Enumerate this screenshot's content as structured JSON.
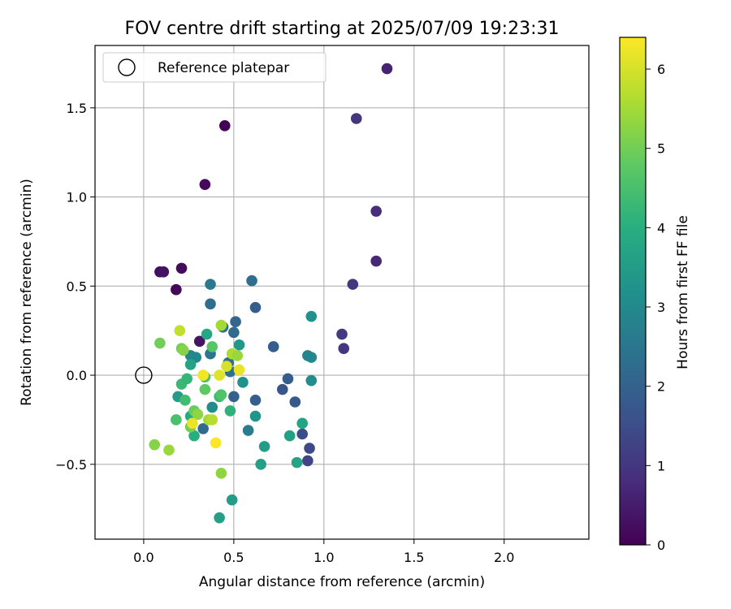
{
  "chart_data": {
    "type": "scatter",
    "title": "FOV centre drift starting at 2025/07/09 19:23:31",
    "xlabel": "Angular distance from reference (arcmin)",
    "ylabel": "Rotation from reference (arcmin)",
    "xlim": [
      -0.27,
      2.47
    ],
    "ylim": [
      -0.92,
      1.85
    ],
    "xticks": [
      0.0,
      0.5,
      1.0,
      1.5,
      2.0
    ],
    "xtick_labels": [
      "0.0",
      "0.5",
      "1.0",
      "1.5",
      "2.0"
    ],
    "yticks": [
      -0.5,
      0.0,
      0.5,
      1.0,
      1.5
    ],
    "ytick_labels": [
      "−0.5",
      "0.0",
      "0.5",
      "1.0",
      "1.5"
    ],
    "grid": true,
    "legend": {
      "position": "upper-left",
      "entries": [
        {
          "label": "Reference platepar",
          "marker": "open-circle",
          "color": "#000000"
        }
      ]
    },
    "reference_point": {
      "x": 0.0,
      "y": 0.0,
      "label": "Reference platepar"
    },
    "colorbar": {
      "label": "Hours from first FF file",
      "colormap": "viridis",
      "range": [
        0,
        6.4
      ],
      "ticks": [
        0,
        1,
        2,
        3,
        4,
        5,
        6
      ],
      "tick_labels": [
        "0",
        "1",
        "2",
        "3",
        "4",
        "5",
        "6"
      ]
    },
    "points": [
      {
        "x": 0.45,
        "y": 1.4,
        "hours": 0.05
      },
      {
        "x": 0.34,
        "y": 1.07,
        "hours": 0.15
      },
      {
        "x": 0.09,
        "y": 0.58,
        "hours": 0.25
      },
      {
        "x": 0.11,
        "y": 0.58,
        "hours": 0.3
      },
      {
        "x": 0.21,
        "y": 0.6,
        "hours": 0.2
      },
      {
        "x": 0.18,
        "y": 0.48,
        "hours": 0.1
      },
      {
        "x": 0.31,
        "y": 0.19,
        "hours": 0.35
      },
      {
        "x": 1.35,
        "y": 1.72,
        "hours": 0.6
      },
      {
        "x": 1.18,
        "y": 1.44,
        "hours": 1.0
      },
      {
        "x": 1.29,
        "y": 0.92,
        "hours": 0.8
      },
      {
        "x": 1.29,
        "y": 0.64,
        "hours": 0.7
      },
      {
        "x": 1.16,
        "y": 0.51,
        "hours": 1.0
      },
      {
        "x": 1.1,
        "y": 0.23,
        "hours": 1.05
      },
      {
        "x": 1.11,
        "y": 0.15,
        "hours": 1.0
      },
      {
        "x": 0.91,
        "y": -0.48,
        "hours": 1.3
      },
      {
        "x": 0.92,
        "y": -0.41,
        "hours": 1.4
      },
      {
        "x": 0.88,
        "y": -0.33,
        "hours": 1.5
      },
      {
        "x": 0.84,
        "y": -0.15,
        "hours": 1.8
      },
      {
        "x": 0.8,
        "y": -0.02,
        "hours": 1.9
      },
      {
        "x": 0.77,
        "y": -0.08,
        "hours": 1.7
      },
      {
        "x": 0.72,
        "y": 0.16,
        "hours": 1.9
      },
      {
        "x": 0.62,
        "y": 0.38,
        "hours": 1.9
      },
      {
        "x": 0.62,
        "y": -0.14,
        "hours": 1.9
      },
      {
        "x": 0.6,
        "y": 0.53,
        "hours": 2.3
      },
      {
        "x": 0.5,
        "y": -0.12,
        "hours": 2.0
      },
      {
        "x": 0.51,
        "y": 0.3,
        "hours": 2.1
      },
      {
        "x": 0.5,
        "y": 0.24,
        "hours": 2.2
      },
      {
        "x": 0.44,
        "y": 0.27,
        "hours": 2.4
      },
      {
        "x": 0.37,
        "y": 0.51,
        "hours": 2.6
      },
      {
        "x": 0.37,
        "y": 0.4,
        "hours": 2.3
      },
      {
        "x": 0.37,
        "y": 0.12,
        "hours": 2.5
      },
      {
        "x": 0.47,
        "y": 0.07,
        "hours": 2.3
      },
      {
        "x": 0.48,
        "y": 0.02,
        "hours": 2.4
      },
      {
        "x": 0.33,
        "y": -0.3,
        "hours": 2.2
      },
      {
        "x": 0.58,
        "y": -0.31,
        "hours": 2.7
      },
      {
        "x": 0.93,
        "y": 0.1,
        "hours": 3.0
      },
      {
        "x": 0.91,
        "y": 0.11,
        "hours": 2.9
      },
      {
        "x": 0.93,
        "y": 0.33,
        "hours": 3.2
      },
      {
        "x": 0.93,
        "y": -0.03,
        "hours": 3.1
      },
      {
        "x": 0.29,
        "y": 0.1,
        "hours": 3.0
      },
      {
        "x": 0.26,
        "y": 0.11,
        "hours": 2.9
      },
      {
        "x": 0.38,
        "y": -0.18,
        "hours": 3.1
      },
      {
        "x": 0.62,
        "y": -0.23,
        "hours": 3.3
      },
      {
        "x": 0.55,
        "y": -0.04,
        "hours": 3.2
      },
      {
        "x": 0.53,
        "y": 0.17,
        "hours": 3.4
      },
      {
        "x": 0.67,
        "y": -0.4,
        "hours": 3.5
      },
      {
        "x": 0.65,
        "y": -0.5,
        "hours": 3.6
      },
      {
        "x": 0.81,
        "y": -0.34,
        "hours": 3.6
      },
      {
        "x": 0.85,
        "y": -0.49,
        "hours": 3.7
      },
      {
        "x": 0.88,
        "y": -0.27,
        "hours": 3.7
      },
      {
        "x": 0.49,
        "y": -0.7,
        "hours": 3.5
      },
      {
        "x": 0.42,
        "y": -0.8,
        "hours": 3.6
      },
      {
        "x": 0.26,
        "y": 0.06,
        "hours": 3.7
      },
      {
        "x": 0.35,
        "y": 0.23,
        "hours": 3.8
      },
      {
        "x": 0.26,
        "y": -0.23,
        "hours": 3.9
      },
      {
        "x": 0.28,
        "y": -0.34,
        "hours": 4.0
      },
      {
        "x": 0.19,
        "y": -0.12,
        "hours": 3.5
      },
      {
        "x": 0.21,
        "y": -0.05,
        "hours": 4.3
      },
      {
        "x": 0.24,
        "y": -0.02,
        "hours": 4.2
      },
      {
        "x": 0.23,
        "y": -0.14,
        "hours": 4.4
      },
      {
        "x": 0.18,
        "y": -0.25,
        "hours": 4.5
      },
      {
        "x": 0.42,
        "y": -0.12,
        "hours": 4.3
      },
      {
        "x": 0.48,
        "y": -0.2,
        "hours": 4.1
      },
      {
        "x": 0.43,
        "y": -0.11,
        "hours": 4.6
      },
      {
        "x": 0.34,
        "y": -0.08,
        "hours": 4.8
      },
      {
        "x": 0.34,
        "y": -0.01,
        "hours": 4.5
      },
      {
        "x": 0.38,
        "y": 0.16,
        "hours": 4.7
      },
      {
        "x": 0.21,
        "y": 0.15,
        "hours": 5.0
      },
      {
        "x": 0.22,
        "y": 0.14,
        "hours": 5.2
      },
      {
        "x": 0.09,
        "y": 0.18,
        "hours": 5.0
      },
      {
        "x": 0.06,
        "y": -0.39,
        "hours": 5.2
      },
      {
        "x": 0.14,
        "y": -0.42,
        "hours": 5.4
      },
      {
        "x": 0.26,
        "y": -0.29,
        "hours": 5.0
      },
      {
        "x": 0.28,
        "y": -0.2,
        "hours": 4.9
      },
      {
        "x": 0.3,
        "y": -0.22,
        "hours": 5.3
      },
      {
        "x": 0.36,
        "y": -0.25,
        "hours": 5.5
      },
      {
        "x": 0.38,
        "y": -0.25,
        "hours": 5.7
      },
      {
        "x": 0.43,
        "y": -0.55,
        "hours": 5.3
      },
      {
        "x": 0.43,
        "y": 0.28,
        "hours": 5.5
      },
      {
        "x": 0.2,
        "y": 0.25,
        "hours": 5.8
      },
      {
        "x": 0.49,
        "y": 0.12,
        "hours": 5.6
      },
      {
        "x": 0.52,
        "y": 0.11,
        "hours": 5.4
      },
      {
        "x": 0.46,
        "y": 0.05,
        "hours": 6.0
      },
      {
        "x": 0.53,
        "y": 0.03,
        "hours": 6.2
      },
      {
        "x": 0.42,
        "y": 0.0,
        "hours": 6.1
      },
      {
        "x": 0.33,
        "y": 0.0,
        "hours": 6.3
      },
      {
        "x": 0.27,
        "y": -0.27,
        "hours": 6.2
      },
      {
        "x": 0.4,
        "y": -0.38,
        "hours": 6.4
      }
    ]
  }
}
